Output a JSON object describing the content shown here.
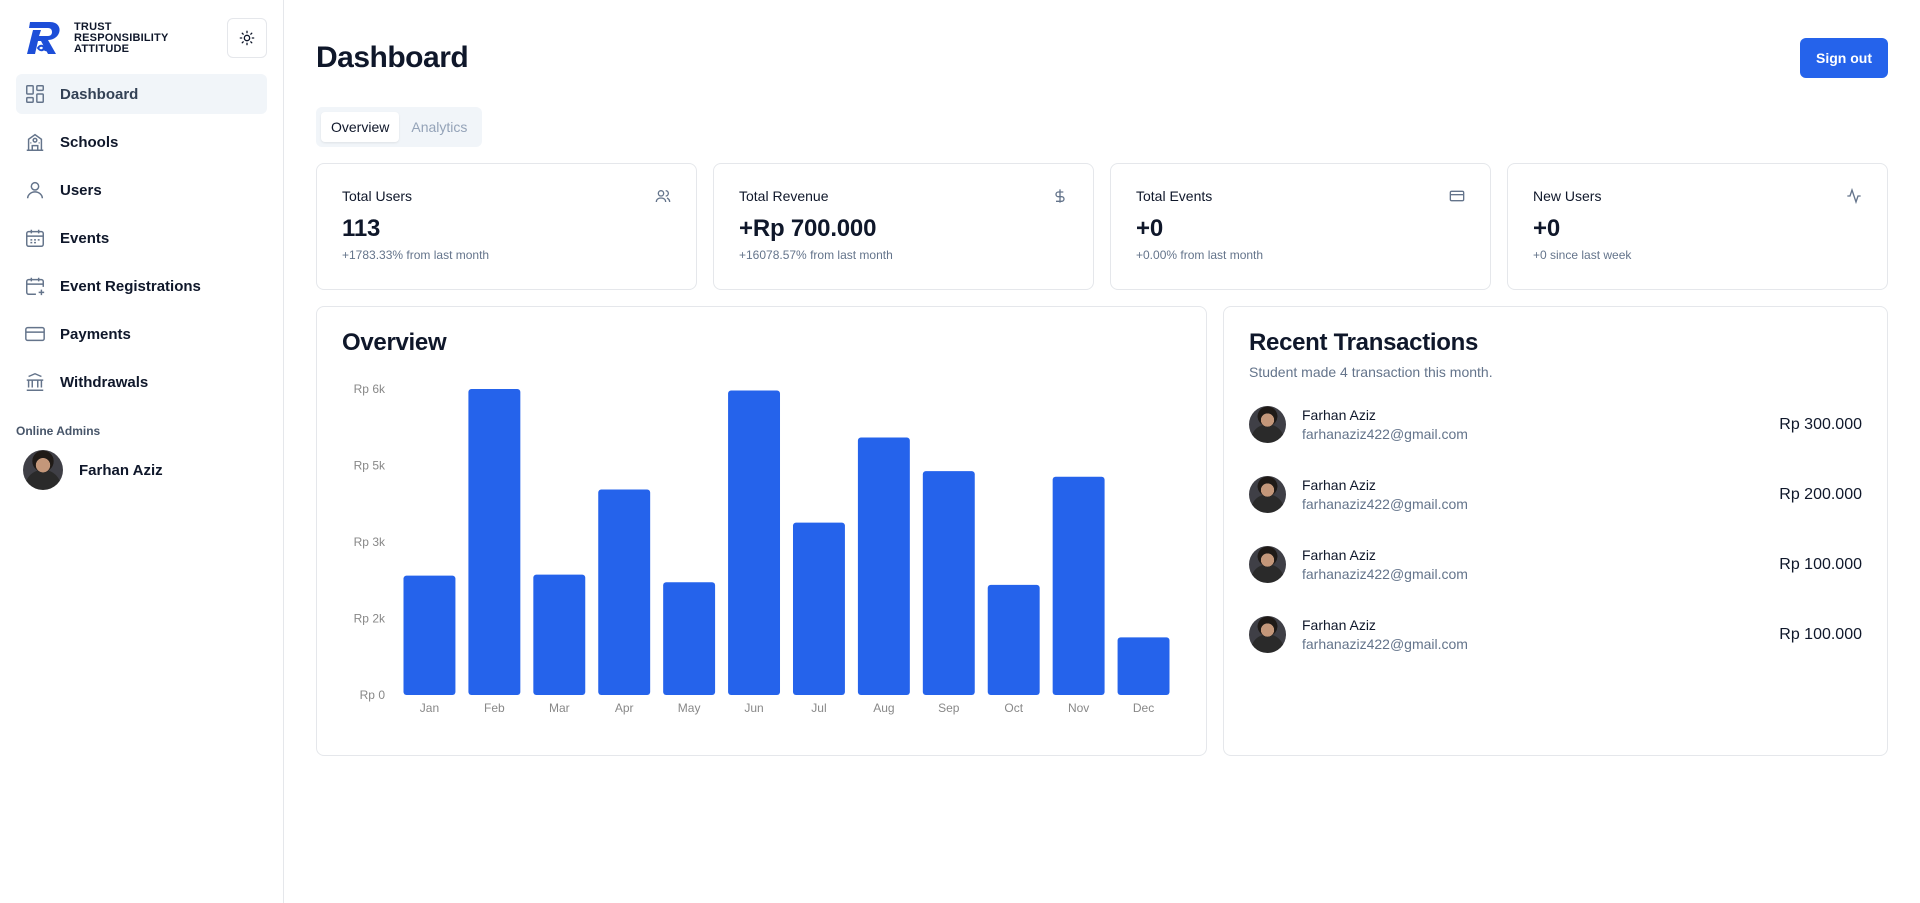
{
  "brand": {
    "line1": "TRUST",
    "line2": "RESPONSIBILITY",
    "line3": "ATTITUDE"
  },
  "sidebar": {
    "items": [
      {
        "label": "Dashboard",
        "icon": "dashboard-icon",
        "active": true
      },
      {
        "label": "Schools",
        "icon": "school-icon"
      },
      {
        "label": "Users",
        "icon": "user-icon"
      },
      {
        "label": "Events",
        "icon": "calendar-icon"
      },
      {
        "label": "Event Registrations",
        "icon": "calendar-plus-icon"
      },
      {
        "label": "Payments",
        "icon": "credit-card-icon"
      },
      {
        "label": "Withdrawals",
        "icon": "bank-icon"
      }
    ],
    "online_label": "Online Admins",
    "admin_name": "Farhan Aziz"
  },
  "header": {
    "title": "Dashboard",
    "signout_label": "Sign out"
  },
  "tabs": [
    {
      "label": "Overview",
      "active": true
    },
    {
      "label": "Analytics"
    }
  ],
  "stats": [
    {
      "title": "Total Users",
      "value": "113",
      "sub": "+1783.33% from last month",
      "icon": "users-icon"
    },
    {
      "title": "Total Revenue",
      "value": "+Rp 700.000",
      "sub": "+16078.57% from last month",
      "icon": "dollar-icon"
    },
    {
      "title": "Total Events",
      "value": "+0",
      "sub": "+0.00% from last month",
      "icon": "credit-card-icon"
    },
    {
      "title": "New Users",
      "value": "+0",
      "sub": "+0 since last week",
      "icon": "activity-icon"
    }
  ],
  "overview": {
    "title": "Overview"
  },
  "chart_data": {
    "type": "bar",
    "categories": [
      "Jan",
      "Feb",
      "Mar",
      "Apr",
      "May",
      "Jun",
      "Jul",
      "Aug",
      "Sep",
      "Oct",
      "Nov",
      "Dec"
    ],
    "values": [
      2340,
      6000,
      2360,
      4030,
      2210,
      5970,
      3380,
      5050,
      4390,
      2160,
      4280,
      1130
    ],
    "y_ticks": [
      "Rp 0",
      "Rp 2k",
      "Rp 3k",
      "Rp 5k",
      "Rp 6k"
    ],
    "ylim": [
      0,
      6000
    ],
    "bar_color": "#2563eb"
  },
  "recent": {
    "title": "Recent Transactions",
    "subtitle": "Student made 4 transaction this month.",
    "items": [
      {
        "name": "Farhan Aziz",
        "email": "farhanaziz422@gmail.com",
        "amount": "Rp 300.000"
      },
      {
        "name": "Farhan Aziz",
        "email": "farhanaziz422@gmail.com",
        "amount": "Rp 200.000"
      },
      {
        "name": "Farhan Aziz",
        "email": "farhanaziz422@gmail.com",
        "amount": "Rp 100.000"
      },
      {
        "name": "Farhan Aziz",
        "email": "farhanaziz422@gmail.com",
        "amount": "Rp 100.000"
      }
    ]
  },
  "colors": {
    "accent": "#2563eb",
    "border": "#e5e7eb",
    "muted": "#64748b"
  }
}
